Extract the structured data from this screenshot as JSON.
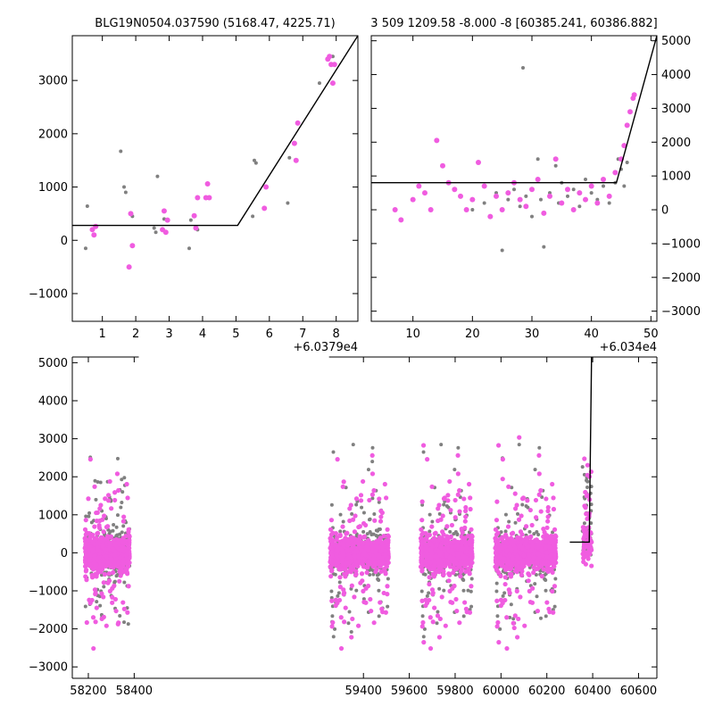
{
  "chart_data": [
    {
      "type": "scatter",
      "title": "BLG19N0504.037590 (5168.47, 4225.71)",
      "x_offset_label": "+6.0379e4",
      "xlim": [
        0.1,
        8.65
      ],
      "ylim": [
        -1520,
        3840
      ],
      "x_ticks": [
        1,
        2,
        3,
        4,
        5,
        6,
        7,
        8
      ],
      "y_ticks": [
        -1000,
        0,
        1000,
        2000,
        3000
      ],
      "y_axis_side": "left",
      "series": [
        {
          "color": "#808080",
          "marker_size": 2,
          "x": [
            0.5,
            0.55,
            1.55,
            1.65,
            1.7,
            1.9,
            2.55,
            2.65,
            2.6,
            2.85,
            3.6,
            3.65,
            3.85,
            5.5,
            5.55,
            5.6,
            6.55,
            6.6,
            7.5,
            7.9
          ],
          "y": [
            -150,
            640,
            1670,
            1000,
            900,
            450,
            230,
            1200,
            150,
            400,
            -150,
            380,
            200,
            450,
            1500,
            1450,
            700,
            1550,
            2950,
            3450
          ]
        },
        {
          "color": "#f05ce0",
          "marker_size": 3,
          "x": [
            0.7,
            0.75,
            0.8,
            1.8,
            1.85,
            1.9,
            2.85,
            2.9,
            2.95,
            2.8,
            3.75,
            3.8,
            3.85,
            4.1,
            4.15,
            4.2,
            5.85,
            5.9,
            6.75,
            6.8,
            6.85,
            7.75,
            7.8,
            7.85,
            7.9,
            7.95
          ],
          "y": [
            200,
            100,
            260,
            -500,
            500,
            -100,
            550,
            150,
            380,
            200,
            460,
            230,
            800,
            800,
            1060,
            800,
            600,
            1000,
            1820,
            1500,
            2200,
            3400,
            3450,
            3300,
            2950,
            3300
          ]
        }
      ],
      "model_line": {
        "x": [
          0.1,
          5.05,
          8.65
        ],
        "y": [
          280,
          280,
          3840
        ]
      }
    },
    {
      "type": "scatter",
      "title": "3 509 1209.58 -8.000 -8 [60385.241, 60386.882]",
      "x_offset_label": "+6.034e4",
      "xlim": [
        3,
        51
      ],
      "ylim": [
        -3300,
        5150
      ],
      "x_ticks": [
        10,
        20,
        30,
        40,
        50
      ],
      "y_ticks": [
        -3000,
        -2000,
        -1000,
        0,
        1000,
        2000,
        3000,
        4000,
        5000
      ],
      "y_axis_side": "right",
      "series": [
        {
          "color": "#808080",
          "marker_size": 2,
          "x": [
            20,
            22,
            24,
            25,
            26,
            27,
            28,
            28.5,
            29,
            30,
            31,
            31.5,
            32,
            33,
            34,
            34.5,
            35,
            36,
            37,
            38,
            39,
            40,
            41,
            42,
            43,
            44,
            44.5,
            45,
            45.5,
            46
          ],
          "y": [
            0,
            200,
            500,
            -1200,
            300,
            600,
            100,
            4200,
            400,
            -200,
            1500,
            300,
            -1100,
            500,
            1300,
            200,
            800,
            400,
            600,
            100,
            900,
            500,
            300,
            700,
            200,
            800,
            1500,
            1200,
            700,
            1400
          ]
        },
        {
          "color": "#f05ce0",
          "marker_size": 3,
          "x": [
            7,
            8,
            10,
            11,
            12,
            13,
            14,
            15,
            16,
            17,
            18,
            19,
            20,
            21,
            22,
            23,
            24,
            25,
            26,
            27,
            28,
            29,
            30,
            31,
            32,
            33,
            34,
            35,
            36,
            37,
            38,
            39,
            40,
            41,
            42,
            43,
            44,
            45,
            45.5,
            46,
            46.5,
            47,
            47.2
          ],
          "y": [
            0,
            -300,
            300,
            700,
            500,
            0,
            2050,
            1300,
            800,
            600,
            400,
            0,
            300,
            1400,
            700,
            -200,
            400,
            0,
            500,
            800,
            300,
            100,
            600,
            900,
            -100,
            400,
            1500,
            200,
            600,
            0,
            500,
            300,
            700,
            200,
            900,
            400,
            1100,
            1500,
            1900,
            2500,
            2900,
            3300,
            3400
          ]
        }
      ],
      "model_line": {
        "x": [
          3,
          44.2,
          51
        ],
        "y": [
          800,
          800,
          5150
        ]
      }
    },
    {
      "type": "scatter",
      "xlim": [
        58130,
        60680
      ],
      "ylim": [
        -3300,
        5150
      ],
      "x_ticks": [
        58200,
        58400,
        59400,
        59600,
        59800,
        60000,
        60200,
        60400,
        60600
      ],
      "y_ticks": [
        -3000,
        -2000,
        -1000,
        0,
        1000,
        2000,
        3000,
        4000,
        5000
      ],
      "y_axis_side": "left",
      "axis_break_between": [
        58420,
        59250
      ],
      "seasons": [
        [
          58185,
          58380
        ],
        [
          59255,
          59510
        ],
        [
          59650,
          59875
        ],
        [
          59975,
          60240
        ],
        [
          60355,
          60395
        ]
      ],
      "series": [
        {
          "color": "#808080",
          "name": "",
          "marker_size": 2
        },
        {
          "color": "#f05ce0",
          "name": "",
          "marker_size": 3
        }
      ],
      "model_line": {
        "x": [
          60300,
          60385,
          60395
        ],
        "y": [
          280,
          280,
          5150
        ]
      }
    }
  ]
}
